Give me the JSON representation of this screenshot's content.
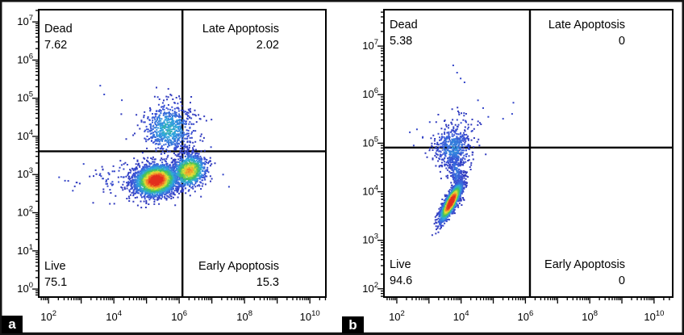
{
  "figure": {
    "description": "Annexin V apoptosis flow cytometry dual dot plots with quadrant gates",
    "panels": [
      {
        "panel_letter": "a",
        "quadrants": {
          "top_left": {
            "label": "Dead",
            "value": "7.62"
          },
          "top_right": {
            "label": "Late Apoptosis",
            "value": "2.02"
          },
          "bottom_left": {
            "label": "Live",
            "value": "75.1"
          },
          "bottom_right": {
            "label": "Early Apoptosis",
            "value": "15.3"
          }
        }
      },
      {
        "panel_letter": "b",
        "quadrants": {
          "top_left": {
            "label": "Dead",
            "value": "5.38"
          },
          "top_right": {
            "label": "Late Apoptosis",
            "value": "0"
          },
          "bottom_left": {
            "label": "Live",
            "value": "94.6"
          },
          "bottom_right": {
            "label": "Early Apoptosis",
            "value": "0"
          }
        }
      }
    ]
  },
  "pseudocolor_scale": {
    "stops": [
      [
        0.0,
        "#2e34b8"
      ],
      [
        0.1,
        "#3a55d8"
      ],
      [
        0.3,
        "#2fa8e0"
      ],
      [
        0.5,
        "#3fc254"
      ],
      [
        0.68,
        "#e8e337"
      ],
      [
        0.85,
        "#f07f28"
      ],
      [
        1.0,
        "#e0231c"
      ]
    ]
  },
  "chart_data": [
    {
      "panel": "a",
      "type": "scatter",
      "subtype": "flow-cytometry pseudocolor density dot plot",
      "x_scale": "log10",
      "y_scale": "log10",
      "grid": false,
      "x_axis": {
        "range_log10": [
          1.7,
          10.49
        ],
        "major_tick_exponents": [
          2,
          3,
          4,
          5,
          6,
          7,
          8,
          9,
          10
        ],
        "labeled_exponents": [
          2,
          4,
          6,
          8,
          10
        ]
      },
      "y_axis": {
        "range_log10": [
          -0.21,
          7.32
        ],
        "major_tick_exponents": [
          0,
          1,
          2,
          3,
          4,
          5,
          6,
          7
        ],
        "labeled_exponents": [
          0,
          1,
          2,
          3,
          4,
          5,
          6,
          7
        ]
      },
      "quadrant_gate": {
        "x_log10": 6.1,
        "y_log10": 3.61
      },
      "quadrants": [
        {
          "position": "top_left",
          "label": "Dead",
          "percent": 7.62
        },
        {
          "position": "top_right",
          "label": "Late Apoptosis",
          "percent": 2.02
        },
        {
          "position": "bottom_left",
          "label": "Live",
          "percent": 75.1
        },
        {
          "position": "bottom_right",
          "label": "Early Apoptosis",
          "percent": 15.3
        }
      ],
      "clusters": [
        {
          "name": "live-main",
          "cx": 5.27,
          "cy": 2.87,
          "sx": 0.34,
          "sy": 0.205,
          "angle_deg": 8,
          "n": 2400,
          "peak": 1.0,
          "seed": 101
        },
        {
          "name": "live-secondary",
          "cx": 6.28,
          "cy": 3.12,
          "sx": 0.27,
          "sy": 0.21,
          "angle_deg": 18,
          "n": 1000,
          "peak": 0.72,
          "seed": 102
        },
        {
          "name": "dead-smear",
          "cx": 5.65,
          "cy": 4.22,
          "sx": 0.4,
          "sy": 0.34,
          "angle_deg": 0,
          "n": 680,
          "peak": 0.33,
          "seed": 103
        },
        {
          "name": "left-tail",
          "cx": 4.55,
          "cy": 2.92,
          "sx": 0.75,
          "sy": 0.27,
          "angle_deg": 4,
          "n": 150,
          "peak": 0.1,
          "seed": 104
        }
      ],
      "outlier_points_log10": [
        [
          3.56,
          5.35
        ],
        [
          3.68,
          5.12
        ],
        [
          4.22,
          4.97
        ],
        [
          5.32,
          5.05
        ],
        [
          6.02,
          4.92
        ],
        [
          6.62,
          3.92
        ],
        [
          6.95,
          3.74
        ],
        [
          7.32,
          3.02
        ],
        [
          7.5,
          2.7
        ],
        [
          2.48,
          2.86
        ],
        [
          2.72,
          2.6
        ],
        [
          3.05,
          3.3
        ],
        [
          2.3,
          2.95
        ]
      ]
    },
    {
      "panel": "b",
      "type": "scatter",
      "subtype": "flow-cytometry pseudocolor density dot plot",
      "x_scale": "log10",
      "y_scale": "log10",
      "grid": false,
      "x_axis": {
        "range_log10": [
          1.6,
          10.58
        ],
        "major_tick_exponents": [
          2,
          3,
          4,
          5,
          6,
          7,
          8,
          9,
          10
        ],
        "labeled_exponents": [
          2,
          4,
          6,
          8,
          10
        ]
      },
      "y_axis": {
        "range_log10": [
          1.83,
          7.75
        ],
        "major_tick_exponents": [
          2,
          3,
          4,
          5,
          6,
          7
        ],
        "labeled_exponents": [
          2,
          3,
          4,
          5,
          6,
          7
        ]
      },
      "quadrant_gate": {
        "x_log10": 6.14,
        "y_log10": 4.91
      },
      "quadrants": [
        {
          "position": "top_left",
          "label": "Dead",
          "percent": 5.38
        },
        {
          "position": "top_right",
          "label": "Late Apoptosis",
          "percent": 0
        },
        {
          "position": "bottom_left",
          "label": "Live",
          "percent": 94.6
        },
        {
          "position": "bottom_right",
          "label": "Early Apoptosis",
          "percent": 0
        }
      ],
      "clusters": [
        {
          "name": "live-main",
          "cx": 3.66,
          "cy": 3.8,
          "sx": 0.26,
          "sy": 0.075,
          "angle_deg": 50,
          "n": 1700,
          "peak": 1.0,
          "seed": 201
        },
        {
          "name": "bridge",
          "cx": 3.83,
          "cy": 4.42,
          "sx": 0.11,
          "sy": 0.27,
          "angle_deg": 15,
          "n": 240,
          "peak": 0.16,
          "seed": 202
        },
        {
          "name": "dead-spray",
          "cx": 3.73,
          "cy": 4.92,
          "sx": 0.3,
          "sy": 0.24,
          "angle_deg": 0,
          "n": 430,
          "peak": 0.22,
          "seed": 203
        },
        {
          "name": "upper-drift",
          "cx": 4.05,
          "cy": 5.32,
          "sx": 0.24,
          "sy": 0.26,
          "angle_deg": 35,
          "n": 60,
          "peak": 0.08,
          "seed": 204
        }
      ],
      "outlier_points_log10": [
        [
          3.73,
          6.62
        ],
        [
          3.85,
          6.47
        ],
        [
          3.96,
          6.35
        ],
        [
          4.08,
          6.27
        ],
        [
          4.5,
          5.9
        ],
        [
          4.66,
          5.74
        ],
        [
          4.82,
          5.56
        ],
        [
          5.28,
          5.52
        ],
        [
          5.56,
          5.62
        ],
        [
          5.6,
          5.85
        ],
        [
          2.38,
          5.24
        ],
        [
          2.6,
          5.3
        ],
        [
          2.78,
          5.13
        ],
        [
          2.5,
          4.97
        ],
        [
          3.0,
          5.45
        ]
      ]
    }
  ]
}
